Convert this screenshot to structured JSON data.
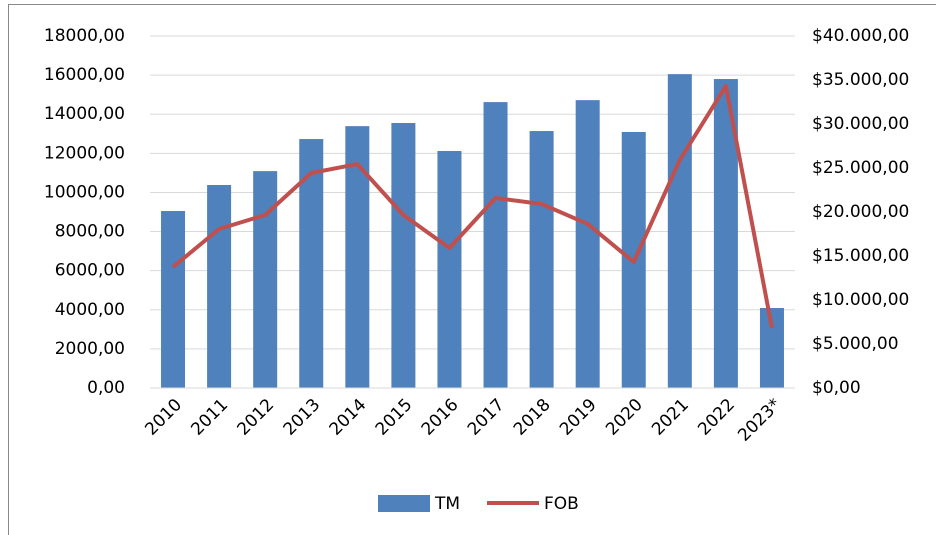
{
  "chart_data": {
    "type": "bar_line",
    "categories": [
      "2010",
      "2011",
      "2012",
      "2013",
      "2014",
      "2015",
      "2016",
      "2017",
      "2018",
      "2019",
      "2020",
      "2021",
      "2022",
      "2023*"
    ],
    "series": [
      {
        "name": "TM",
        "type": "bar",
        "color": "#4f81bd",
        "values": [
          9050,
          10380,
          11090,
          12730,
          13390,
          13550,
          12120,
          14620,
          13140,
          14720,
          13090,
          16050,
          15800,
          4090
        ]
      },
      {
        "name": "FOB",
        "type": "line",
        "axis": "y2",
        "color": "#c0504d",
        "values": [
          13750,
          18070,
          19660,
          24430,
          25450,
          19660,
          15910,
          21590,
          20910,
          18640,
          14320,
          25910,
          34320,
          6820
        ]
      }
    ],
    "ylim": [
      0,
      18000
    ],
    "yticks": [
      {
        "value": 0,
        "label": "0,00"
      },
      {
        "value": 2000,
        "label": "2000,00"
      },
      {
        "value": 4000,
        "label": "4000,00"
      },
      {
        "value": 6000,
        "label": "6000,00"
      },
      {
        "value": 8000,
        "label": "8000,00"
      },
      {
        "value": 10000,
        "label": "10000,00"
      },
      {
        "value": 12000,
        "label": "12000,00"
      },
      {
        "value": 14000,
        "label": "14000,00"
      },
      {
        "value": 16000,
        "label": "16000,00"
      },
      {
        "value": 18000,
        "label": "18000,00"
      }
    ],
    "y2lim": [
      0,
      40000
    ],
    "y2ticks": [
      {
        "value": 0,
        "label": "$0,00"
      },
      {
        "value": 5000,
        "label": "$5.000,00"
      },
      {
        "value": 10000,
        "label": "$10.000,00"
      },
      {
        "value": 15000,
        "label": "$15.000,00"
      },
      {
        "value": 20000,
        "label": "$20.000,00"
      },
      {
        "value": 25000,
        "label": "$25.000,00"
      },
      {
        "value": 30000,
        "label": "$30.000,00"
      },
      {
        "value": 35000,
        "label": "$35.000,00"
      },
      {
        "value": 40000,
        "label": "$40.000,00"
      }
    ],
    "grid": true,
    "legend": "bottom"
  }
}
